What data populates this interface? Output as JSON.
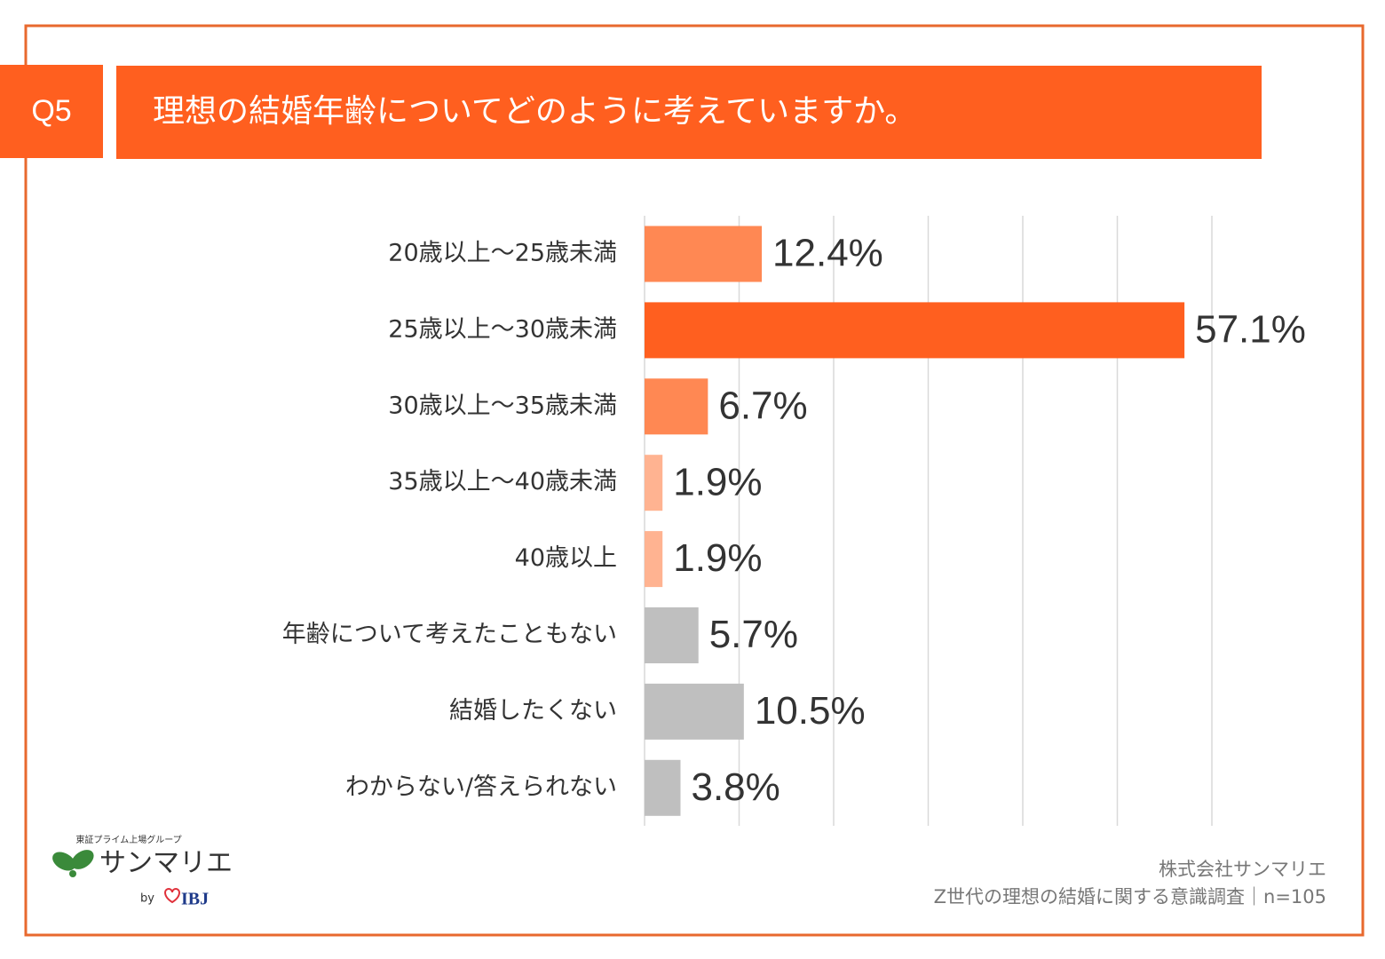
{
  "header": {
    "question": "Q5",
    "title": "理想の結婚年齢についてどのように考えていますか。"
  },
  "chart_data": {
    "type": "barh",
    "categories": [
      "20歳以上～25歳未満",
      "25歳以上～30歳未満",
      "30歳以上～35歳未満",
      "35歳以上～40歳未満",
      "40歳以上",
      "年齢について考えたこともない",
      "結婚したくない",
      "わからない/答えられない"
    ],
    "values": [
      12.4,
      57.1,
      6.7,
      1.9,
      1.9,
      5.7,
      10.5,
      3.8
    ],
    "value_labels": [
      "12.4%",
      "57.1%",
      "6.7%",
      "1.9%",
      "1.9%",
      "5.7%",
      "10.5%",
      "3.8%"
    ],
    "colors": [
      "#ff8853",
      "#ff5f1f",
      "#ff8853",
      "#ffb391",
      "#ffb391",
      "#bfbfbf",
      "#bfbfbf",
      "#bfbfbf"
    ],
    "xlim": [
      0,
      60
    ],
    "xticks": [
      0,
      10,
      20,
      30,
      40,
      50,
      60
    ],
    "grid": true
  },
  "logo": {
    "tagline": "東証プライム上場グループ",
    "brand": "サンマリエ",
    "by": "by",
    "partner": "IBJ"
  },
  "footer": {
    "company": "株式会社サンマリエ",
    "survey": "Z世代の理想の結婚に関する意識調査｜n=105"
  }
}
